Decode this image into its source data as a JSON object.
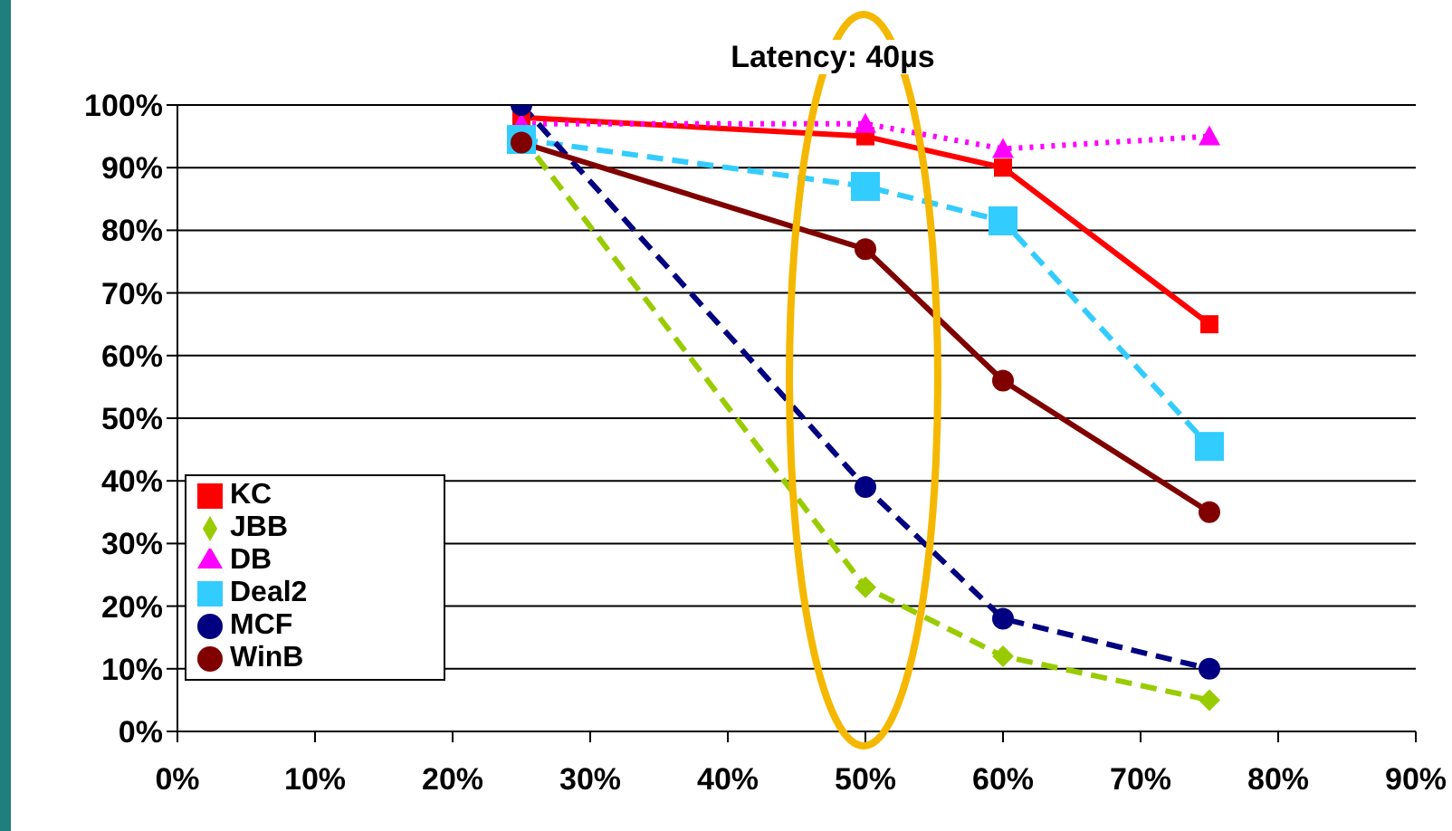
{
  "chart_data": {
    "type": "line",
    "title": "Latency: 40µs",
    "x": [
      25,
      50,
      60,
      75
    ],
    "xlim": [
      0,
      90
    ],
    "xticks": [
      {
        "value": 0,
        "label": "0%"
      },
      {
        "value": 10,
        "label": "10%"
      },
      {
        "value": 20,
        "label": "20%"
      },
      {
        "value": 30,
        "label": "30%"
      },
      {
        "value": 40,
        "label": "40%"
      },
      {
        "value": 50,
        "label": "50%"
      },
      {
        "value": 60,
        "label": "60%"
      },
      {
        "value": 70,
        "label": "70%"
      },
      {
        "value": 80,
        "label": "80%"
      },
      {
        "value": 90,
        "label": "90%"
      }
    ],
    "ylim": [
      0,
      100
    ],
    "yticks": [
      {
        "value": 0,
        "label": "0%"
      },
      {
        "value": 10,
        "label": "10%"
      },
      {
        "value": 20,
        "label": "20%"
      },
      {
        "value": 30,
        "label": "30%"
      },
      {
        "value": 40,
        "label": "40%"
      },
      {
        "value": 50,
        "label": "50%"
      },
      {
        "value": 60,
        "label": "60%"
      },
      {
        "value": 70,
        "label": "70%"
      },
      {
        "value": 80,
        "label": "80%"
      },
      {
        "value": 90,
        "label": "90%"
      },
      {
        "value": 100,
        "label": "100%"
      }
    ],
    "grid": "y",
    "legend": "bottom left",
    "series": [
      {
        "name": "KC",
        "color": "#ff0000",
        "values": [
          98,
          95,
          90,
          65
        ],
        "marker": "square",
        "line_style": "solid"
      },
      {
        "name": "JBB",
        "color": "#99cc00",
        "values": [
          95,
          23,
          12,
          5
        ],
        "marker": "diamond",
        "line_style": "dashed"
      },
      {
        "name": "DB",
        "color": "#ff00ff",
        "values": [
          97,
          97,
          93,
          95
        ],
        "marker": "triangle",
        "line_style": "dotted"
      },
      {
        "name": "Deal2",
        "color": "#33ccff",
        "values": [
          94.5,
          87,
          81.5,
          45.5
        ],
        "marker": "square",
        "line_style": "dashed"
      },
      {
        "name": "MCF",
        "color": "#000080",
        "values": [
          100,
          39,
          18,
          10
        ],
        "marker": "circle",
        "line_style": "dashed"
      },
      {
        "name": "WinB",
        "color": "#800000",
        "values": [
          94,
          77,
          56,
          35
        ],
        "marker": "circle",
        "line_style": "solid"
      }
    ]
  }
}
